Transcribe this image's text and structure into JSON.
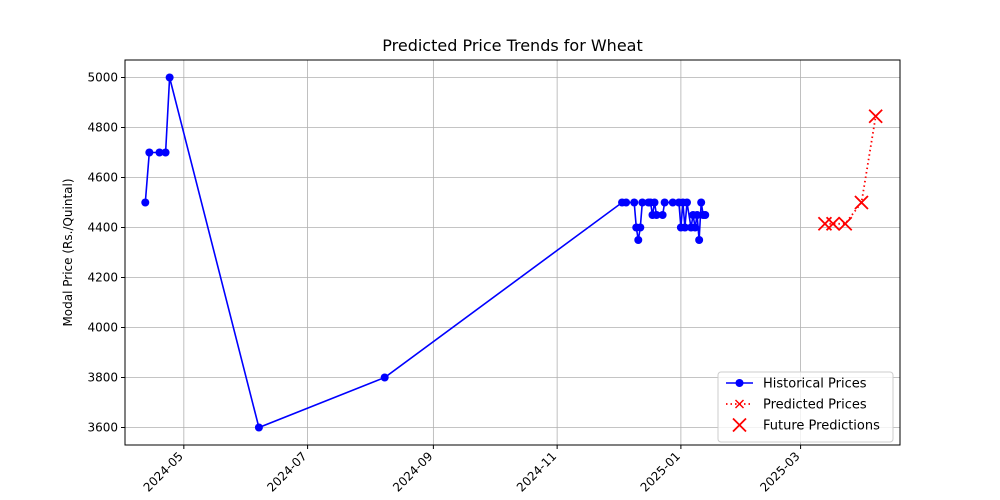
{
  "chart_data": {
    "type": "line",
    "title": "Predicted Price Trends for Wheat",
    "xlabel": "",
    "ylabel": "Modal Price (Rs./Quintal)",
    "x_tick_labels": [
      "2024-05",
      "2024-07",
      "2024-09",
      "2024-11",
      "2025-01",
      "2025-03"
    ],
    "y_ticks": [
      3600,
      3800,
      4000,
      4200,
      4400,
      4600,
      4800,
      5000
    ],
    "xlim": [
      "2024-04-02",
      "2025-04-19"
    ],
    "ylim": [
      3530,
      5070
    ],
    "grid": true,
    "legend_position": "lower-right",
    "series": [
      {
        "name": "Historical Prices",
        "color": "#0000ff",
        "style": "solid-line-circle-markers",
        "points": [
          {
            "date": "2024-04-12",
            "value": 4500
          },
          {
            "date": "2024-04-14",
            "value": 4700
          },
          {
            "date": "2024-04-19",
            "value": 4700
          },
          {
            "date": "2024-04-22",
            "value": 4700
          },
          {
            "date": "2024-04-24",
            "value": 5000
          },
          {
            "date": "2024-06-07",
            "value": 3600
          },
          {
            "date": "2024-08-08",
            "value": 3800
          },
          {
            "date": "2024-12-03",
            "value": 4500
          },
          {
            "date": "2024-12-05",
            "value": 4500
          },
          {
            "date": "2024-12-09",
            "value": 4500
          },
          {
            "date": "2024-12-10",
            "value": 4400
          },
          {
            "date": "2024-12-11",
            "value": 4350
          },
          {
            "date": "2024-12-12",
            "value": 4400
          },
          {
            "date": "2024-12-13",
            "value": 4500
          },
          {
            "date": "2024-12-16",
            "value": 4500
          },
          {
            "date": "2024-12-17",
            "value": 4500
          },
          {
            "date": "2024-12-18",
            "value": 4450
          },
          {
            "date": "2024-12-19",
            "value": 4500
          },
          {
            "date": "2024-12-20",
            "value": 4450
          },
          {
            "date": "2024-12-23",
            "value": 4450
          },
          {
            "date": "2024-12-24",
            "value": 4500
          },
          {
            "date": "2024-12-28",
            "value": 4500
          },
          {
            "date": "2024-12-31",
            "value": 4500
          },
          {
            "date": "2025-01-01",
            "value": 4400
          },
          {
            "date": "2025-01-02",
            "value": 4500
          },
          {
            "date": "2025-01-03",
            "value": 4400
          },
          {
            "date": "2025-01-04",
            "value": 4500
          },
          {
            "date": "2025-01-06",
            "value": 4400
          },
          {
            "date": "2025-01-07",
            "value": 4450
          },
          {
            "date": "2025-01-08",
            "value": 4400
          },
          {
            "date": "2025-01-09",
            "value": 4450
          },
          {
            "date": "2025-01-10",
            "value": 4350
          },
          {
            "date": "2025-01-11",
            "value": 4500
          },
          {
            "date": "2025-01-12",
            "value": 4450
          },
          {
            "date": "2025-01-13",
            "value": 4450
          }
        ]
      },
      {
        "name": "Predicted Prices",
        "color": "#ff0000",
        "style": "dotted-line-x-markers",
        "points": [
          {
            "date": "2025-03-13",
            "value": 4415
          },
          {
            "date": "2025-03-17",
            "value": 4415
          },
          {
            "date": "2025-03-23",
            "value": 4415
          },
          {
            "date": "2025-03-31",
            "value": 4500
          },
          {
            "date": "2025-04-07",
            "value": 4845
          }
        ]
      },
      {
        "name": "Future Predictions",
        "color": "#ff0000",
        "style": "large-x-scatter",
        "points": [
          {
            "date": "2025-03-13",
            "value": 4415
          },
          {
            "date": "2025-03-17",
            "value": 4415
          },
          {
            "date": "2025-03-23",
            "value": 4415
          },
          {
            "date": "2025-03-31",
            "value": 4500
          },
          {
            "date": "2025-04-07",
            "value": 4845
          }
        ]
      }
    ]
  }
}
